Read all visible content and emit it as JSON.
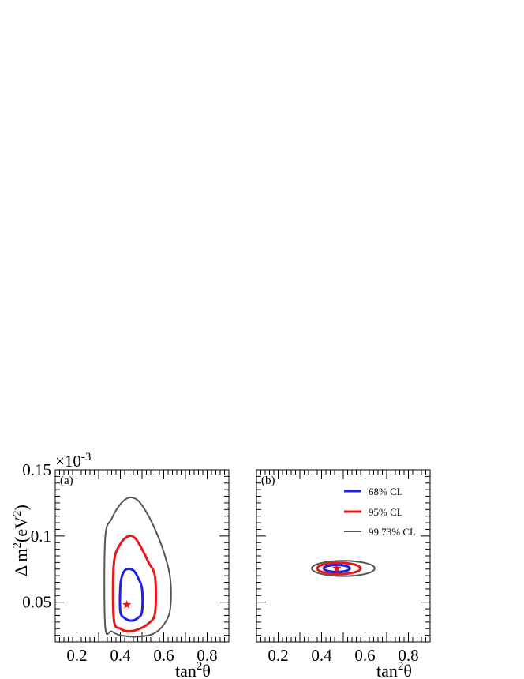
{
  "chart_data": [
    {
      "type": "contour",
      "panel_label": "(a)",
      "xlabel_base": "tan",
      "xlabel_sup": "2",
      "xlabel_tail": "θ",
      "ylabel_pre": "Δ m",
      "ylabel_sup1": "2",
      "ylabel_mid": "(eV",
      "ylabel_sup2": "2",
      "ylabel_post": ")",
      "y_multiplier_base": "×10",
      "y_multiplier_exp": "-3",
      "xlim": [
        0.1,
        0.9
      ],
      "ylim": [
        0.02,
        0.15
      ],
      "x_ticks": [
        0.2,
        0.4,
        0.6,
        0.8
      ],
      "x_tick_labels": [
        "0.2",
        "0.4",
        "0.6",
        "0.8"
      ],
      "y_ticks": [
        0.05,
        0.1,
        0.15
      ],
      "y_tick_labels": [
        "0.05",
        "0.1",
        "0.15"
      ],
      "best_fit": {
        "x": 0.43,
        "y": 0.048,
        "color": "#e8181a",
        "symbol": "star"
      },
      "contours": [
        {
          "level": "68% CL",
          "color": "#1f1fe6",
          "points": [
            [
              0.4,
              0.043
            ],
            [
              0.4,
              0.062
            ],
            [
              0.41,
              0.071
            ],
            [
              0.43,
              0.075
            ],
            [
              0.46,
              0.074
            ],
            [
              0.48,
              0.069
            ],
            [
              0.5,
              0.06
            ],
            [
              0.5,
              0.043
            ],
            [
              0.48,
              0.038
            ],
            [
              0.45,
              0.036
            ],
            [
              0.42,
              0.038
            ]
          ]
        },
        {
          "level": "95% CL",
          "color": "#e8181a",
          "points": [
            [
              0.37,
              0.037
            ],
            [
              0.37,
              0.079
            ],
            [
              0.4,
              0.094
            ],
            [
              0.44,
              0.1
            ],
            [
              0.47,
              0.098
            ],
            [
              0.5,
              0.09
            ],
            [
              0.53,
              0.08
            ],
            [
              0.56,
              0.069
            ],
            [
              0.56,
              0.042
            ],
            [
              0.53,
              0.034
            ],
            [
              0.49,
              0.03
            ],
            [
              0.44,
              0.028
            ],
            [
              0.4,
              0.03
            ]
          ]
        },
        {
          "level": "99.73% CL",
          "color": "#555555",
          "points": [
            [
              0.33,
              0.032
            ],
            [
              0.33,
              0.098
            ],
            [
              0.36,
              0.113
            ],
            [
              0.4,
              0.124
            ],
            [
              0.44,
              0.129
            ],
            [
              0.48,
              0.127
            ],
            [
              0.52,
              0.118
            ],
            [
              0.56,
              0.105
            ],
            [
              0.6,
              0.088
            ],
            [
              0.63,
              0.068
            ],
            [
              0.63,
              0.045
            ],
            [
              0.6,
              0.033
            ],
            [
              0.55,
              0.026
            ],
            [
              0.48,
              0.024
            ],
            [
              0.4,
              0.025
            ],
            [
              0.36,
              0.028
            ]
          ]
        }
      ]
    },
    {
      "type": "contour",
      "panel_label": "(b)",
      "xlabel_base": "tan",
      "xlabel_sup": "2",
      "xlabel_tail": "θ",
      "xlim": [
        0.1,
        0.9
      ],
      "ylim": [
        0.02,
        0.15
      ],
      "x_ticks": [
        0.2,
        0.4,
        0.6,
        0.8
      ],
      "x_tick_labels": [
        "0.2",
        "0.4",
        "0.6",
        "0.8"
      ],
      "best_fit": {
        "x": 0.47,
        "y": 0.0755,
        "color": "#e8181a",
        "symbol": "star"
      },
      "contours": [
        {
          "level": "68% CL",
          "color": "#1f1fe6",
          "ellipse": {
            "cx": 0.47,
            "cy": 0.0755,
            "rx": 0.06,
            "ry": 0.0026
          }
        },
        {
          "level": "95% CL",
          "color": "#e8181a",
          "ellipse": {
            "cx": 0.48,
            "cy": 0.0755,
            "rx": 0.1,
            "ry": 0.0042
          }
        },
        {
          "level": "99.73% CL",
          "color": "#555555",
          "ellipse": {
            "cx": 0.5,
            "cy": 0.0755,
            "rx": 0.145,
            "ry": 0.0058
          }
        }
      ],
      "legend": {
        "placement": "top-right",
        "entries": [
          {
            "label": "68% CL",
            "color": "#1f1fe6"
          },
          {
            "label": "95% CL",
            "color": "#e8181a"
          },
          {
            "label": "99.73% CL",
            "color": "#555555"
          }
        ]
      }
    }
  ]
}
